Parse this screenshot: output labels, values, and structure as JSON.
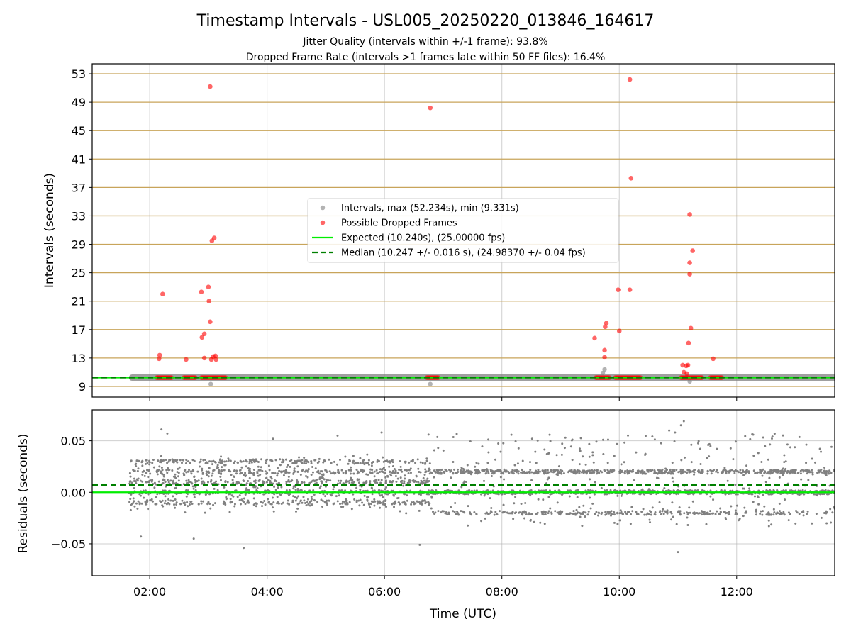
{
  "figure": {
    "title": "Timestamp Intervals - USL005_20250220_013846_164617",
    "subtitle_1": "Jitter Quality (intervals within +/-1 frame): 93.8%",
    "subtitle_2": "Dropped Frame Rate (intervals >1 frames late within 50 FF files): 16.4%"
  },
  "colors": {
    "grid": "#b0b0b0",
    "hline": "#c8a45a",
    "intervals": "#808080",
    "dropped": "#ff0000",
    "expected": "#00ee00",
    "median": "#008000",
    "residual_points": "#808080"
  },
  "chart_data": [
    {
      "type": "scatter",
      "panel": "top",
      "ylabel": "Intervals (seconds)",
      "xlabel": "",
      "x_unit": "hours UTC",
      "xlim": [
        1.02,
        13.67
      ],
      "ylim": [
        7.5,
        54.4
      ],
      "x_ticks": [
        2,
        4,
        6,
        8,
        10,
        12
      ],
      "x_tick_labels": [
        "02:00",
        "04:00",
        "06:00",
        "08:00",
        "10:00",
        "12:00"
      ],
      "y_ticks": [
        9,
        13,
        17,
        21,
        25,
        29,
        33,
        37,
        41,
        45,
        49,
        53
      ],
      "y_tick_labels": [
        "9",
        "13",
        "17",
        "21",
        "25",
        "29",
        "33",
        "37",
        "41",
        "45",
        "49",
        "53"
      ],
      "grid": true,
      "legend_position": "center",
      "legend": [
        {
          "label": "Intervals, max (52.234s), min (9.331s)",
          "kind": "marker",
          "color": "#808080"
        },
        {
          "label": "Possible Dropped Frames",
          "kind": "marker",
          "color": "#ff0000"
        },
        {
          "label": "Expected (10.240s), (25.00000 fps)",
          "kind": "line",
          "color": "#00ee00"
        },
        {
          "label": "Median (10.247 +/- 0.016 s), (24.98370 +/- 0.04 fps)",
          "kind": "dashed",
          "color": "#008000"
        }
      ],
      "expected_value": 10.24,
      "median_value": 10.247,
      "intervals_band": {
        "x_range": [
          1.7,
          13.67
        ],
        "y": 10.24
      },
      "series": [
        {
          "name": "Intervals",
          "points": [
            [
              3.04,
              9.33
            ],
            [
              6.78,
              9.33
            ],
            [
              11.2,
              9.7
            ],
            [
              9.75,
              11.4
            ],
            [
              9.72,
              10.9
            ]
          ]
        },
        {
          "name": "Possible Dropped Frames",
          "points": [
            [
              2.22,
              22.0
            ],
            [
              2.17,
              13.4
            ],
            [
              2.16,
              12.9
            ],
            [
              2.62,
              12.8
            ],
            [
              2.88,
              22.3
            ],
            [
              3.0,
              23.0
            ],
            [
              3.01,
              21.0
            ],
            [
              3.03,
              18.1
            ],
            [
              2.93,
              16.4
            ],
            [
              2.89,
              15.9
            ],
            [
              2.93,
              13.0
            ],
            [
              3.05,
              12.8
            ],
            [
              3.08,
              13.2
            ],
            [
              3.12,
              13.3
            ],
            [
              3.13,
              12.8
            ],
            [
              3.06,
              29.5
            ],
            [
              3.1,
              29.9
            ],
            [
              3.03,
              51.2
            ],
            [
              6.78,
              48.2
            ],
            [
              10.18,
              52.2
            ],
            [
              10.2,
              38.3
            ],
            [
              10.18,
              22.6
            ],
            [
              9.98,
              22.6
            ],
            [
              10.0,
              16.8
            ],
            [
              9.58,
              15.8
            ],
            [
              9.75,
              14.1
            ],
            [
              9.76,
              17.4
            ],
            [
              9.78,
              17.9
            ],
            [
              9.75,
              13.1
            ],
            [
              11.2,
              33.2
            ],
            [
              11.25,
              28.1
            ],
            [
              11.2,
              26.4
            ],
            [
              11.2,
              24.8
            ],
            [
              11.18,
              15.1
            ],
            [
              11.22,
              17.2
            ],
            [
              11.08,
              12.0
            ],
            [
              11.14,
              11.9
            ],
            [
              11.17,
              12.0
            ],
            [
              11.1,
              11.0
            ],
            [
              11.15,
              10.8
            ],
            [
              11.6,
              12.9
            ]
          ],
          "baseline_clusters": [
            [
              2.12,
              2.38
            ],
            [
              2.58,
              2.78
            ],
            [
              2.88,
              3.3
            ],
            [
              6.72,
              6.92
            ],
            [
              9.6,
              9.85
            ],
            [
              9.93,
              10.38
            ],
            [
              11.05,
              11.42
            ],
            [
              11.55,
              11.75
            ]
          ],
          "baseline_value": 10.24
        }
      ]
    },
    {
      "type": "scatter",
      "panel": "bottom",
      "ylabel": "Residuals (seconds)",
      "xlabel": "Time (UTC)",
      "x_unit": "hours UTC",
      "xlim": [
        1.02,
        13.67
      ],
      "ylim": [
        -0.081,
        0.08
      ],
      "x_ticks": [
        2,
        4,
        6,
        8,
        10,
        12
      ],
      "x_tick_labels": [
        "02:00",
        "04:00",
        "06:00",
        "08:00",
        "10:00",
        "12:00"
      ],
      "y_ticks": [
        0.05,
        0.0,
        -0.05
      ],
      "y_tick_labels": [
        "0.05",
        "0.00",
        "−0.05"
      ],
      "grid": true,
      "expected_residual": 0.0,
      "median_residual": 0.007,
      "residual_distribution": {
        "x_range": [
          1.65,
          13.67
        ],
        "count": 3200,
        "levels_early": [
          -0.01,
          0.0,
          0.01,
          0.02,
          0.03
        ],
        "levels_late": [
          -0.02,
          0.0,
          0.02
        ],
        "transition_x": 6.8,
        "spread_early": 0.06,
        "seed": 7
      },
      "series": [
        {
          "name": "Residuals",
          "outliers": [
            [
              2.2,
              0.061
            ],
            [
              2.3,
              0.057
            ],
            [
              6.75,
              0.056
            ],
            [
              10.85,
              0.06
            ],
            [
              10.95,
              0.058
            ],
            [
              11.05,
              0.065
            ],
            [
              11.1,
              0.069
            ],
            [
              3.6,
              -0.054
            ],
            [
              6.6,
              -0.051
            ],
            [
              11.0,
              -0.058
            ],
            [
              1.85,
              -0.043
            ],
            [
              2.75,
              -0.045
            ],
            [
              4.1,
              0.052
            ],
            [
              5.2,
              0.055
            ],
            [
              5.95,
              0.058
            ]
          ]
        }
      ]
    }
  ]
}
